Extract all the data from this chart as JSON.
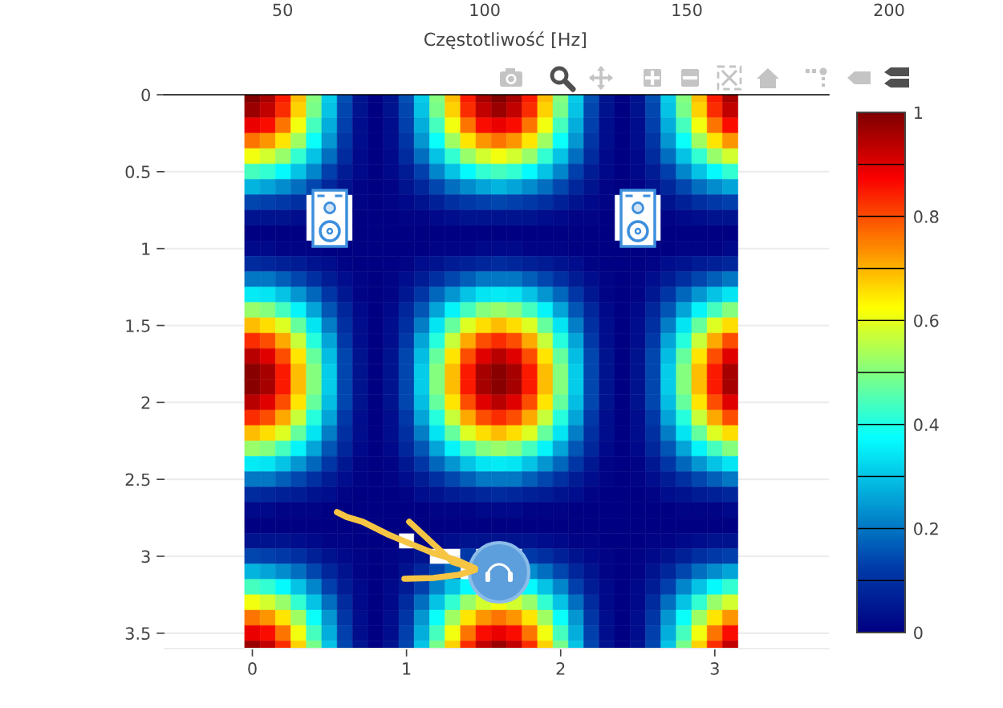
{
  "chart_data": {
    "type": "heatmap",
    "x": [
      0,
      0.1,
      0.2,
      0.3,
      0.4,
      0.5,
      0.6,
      0.7,
      0.8,
      0.9,
      1,
      1.1,
      1.2,
      1.3,
      1.4,
      1.5,
      1.6,
      1.7,
      1.8,
      1.9,
      2,
      2.1,
      2.2,
      2.3,
      2.4,
      2.5,
      2.6,
      2.7,
      2.8,
      2.9,
      3,
      3.1
    ],
    "y": [
      0,
      0.1,
      0.2,
      0.3,
      0.4,
      0.5,
      0.6,
      0.7,
      0.8,
      0.9,
      1,
      1.1,
      1.2,
      1.3,
      1.4,
      1.5,
      1.6,
      1.7,
      1.8,
      1.9,
      2,
      2.1,
      2.2,
      2.3,
      2.4,
      2.5,
      2.6,
      2.7,
      2.8,
      2.9,
      3,
      3.1,
      3.2,
      3.3,
      3.4,
      3.5,
      3.6
    ],
    "cells": [
      [
        1,
        0.96,
        0.85,
        0.69,
        0.5,
        0.31,
        0.15,
        0.04,
        0,
        0.04,
        0.15,
        0.31,
        0.5,
        0.69,
        0.85,
        0.96,
        1,
        0.96,
        0.85,
        0.69,
        0.5,
        0.31,
        0.15,
        0.04,
        0,
        0.04,
        0.15,
        0.31,
        0.5,
        0.69,
        0.85,
        0.96
      ],
      [
        0.97,
        0.93,
        0.83,
        0.67,
        0.49,
        0.3,
        0.14,
        0.04,
        0,
        0.04,
        0.14,
        0.3,
        0.49,
        0.67,
        0.83,
        0.93,
        0.97,
        0.93,
        0.83,
        0.67,
        0.49,
        0.3,
        0.14,
        0.04,
        0,
        0.04,
        0.14,
        0.3,
        0.49,
        0.67,
        0.83,
        0.93
      ],
      [
        0.89,
        0.86,
        0.76,
        0.61,
        0.44,
        0.27,
        0.13,
        0.03,
        0,
        0.03,
        0.13,
        0.27,
        0.44,
        0.61,
        0.76,
        0.86,
        0.89,
        0.86,
        0.76,
        0.61,
        0.44,
        0.27,
        0.13,
        0.03,
        0,
        0.03,
        0.13,
        0.27,
        0.44,
        0.61,
        0.76,
        0.86
      ],
      [
        0.76,
        0.73,
        0.65,
        0.53,
        0.38,
        0.24,
        0.11,
        0.03,
        0,
        0.03,
        0.11,
        0.24,
        0.38,
        0.53,
        0.65,
        0.73,
        0.76,
        0.73,
        0.65,
        0.53,
        0.38,
        0.24,
        0.11,
        0.03,
        0,
        0.03,
        0.11,
        0.24,
        0.38,
        0.53,
        0.65,
        0.73
      ],
      [
        0.61,
        0.58,
        0.52,
        0.42,
        0.3,
        0.19,
        0.09,
        0.02,
        0,
        0.02,
        0.09,
        0.19,
        0.3,
        0.42,
        0.52,
        0.58,
        0.61,
        0.58,
        0.52,
        0.42,
        0.3,
        0.19,
        0.09,
        0.02,
        0,
        0.02,
        0.09,
        0.19,
        0.3,
        0.42,
        0.52,
        0.58
      ],
      [
        0.44,
        0.42,
        0.37,
        0.3,
        0.22,
        0.13,
        0.06,
        0.02,
        0,
        0.02,
        0.06,
        0.13,
        0.22,
        0.3,
        0.37,
        0.42,
        0.44,
        0.42,
        0.37,
        0.3,
        0.22,
        0.13,
        0.06,
        0.02,
        0,
        0.02,
        0.06,
        0.13,
        0.22,
        0.3,
        0.37,
        0.42
      ],
      [
        0.28,
        0.26,
        0.23,
        0.19,
        0.14,
        0.08,
        0.04,
        0.01,
        0,
        0.01,
        0.04,
        0.08,
        0.14,
        0.19,
        0.23,
        0.26,
        0.28,
        0.26,
        0.23,
        0.19,
        0.14,
        0.08,
        0.04,
        0.01,
        0,
        0.01,
        0.04,
        0.08,
        0.14,
        0.19,
        0.23,
        0.26
      ],
      [
        0.14,
        0.13,
        0.12,
        0.1,
        null,
        null,
        null,
        0.01,
        0,
        0.01,
        0.02,
        0.04,
        0.07,
        0.1,
        0.12,
        0.13,
        0.14,
        0.13,
        0.12,
        0.1,
        0.07,
        0.04,
        0.02,
        0.01,
        null,
        null,
        null,
        0.04,
        0.07,
        0.1,
        0.12,
        0.13
      ],
      [
        0.04,
        0.04,
        0.04,
        0.03,
        null,
        null,
        null,
        0,
        0,
        0,
        0.01,
        0.01,
        0.02,
        0.03,
        0.04,
        0.04,
        0.04,
        0.04,
        0.04,
        0.03,
        0.02,
        0.01,
        0.01,
        0,
        null,
        null,
        null,
        0.01,
        0.02,
        0.03,
        0.04,
        0.04
      ],
      [
        0,
        0,
        0,
        0,
        null,
        null,
        null,
        0,
        0,
        0,
        0,
        0,
        0,
        0,
        0,
        0,
        0,
        0,
        0,
        0,
        0,
        0,
        0,
        0,
        null,
        null,
        null,
        0,
        0,
        0,
        0,
        0
      ],
      [
        0.02,
        0.02,
        0.01,
        0.01,
        0.01,
        0,
        0,
        0,
        0,
        0,
        0,
        0,
        0.01,
        0.01,
        0.01,
        0.02,
        0.02,
        0.02,
        0.01,
        0.01,
        0.01,
        0,
        0,
        0,
        0,
        0,
        0,
        0,
        0.01,
        0.01,
        0.01,
        0.02
      ],
      [
        0.09,
        0.08,
        0.07,
        0.06,
        0.04,
        0.03,
        0.01,
        0,
        0,
        0,
        0.01,
        0.03,
        0.04,
        0.06,
        0.07,
        0.08,
        0.09,
        0.08,
        0.07,
        0.06,
        0.04,
        0.03,
        0.01,
        0,
        0,
        0,
        0.01,
        0.03,
        0.04,
        0.06,
        0.07,
        0.08
      ],
      [
        0.2,
        0.2,
        0.17,
        0.14,
        0.1,
        0.06,
        0.03,
        0.01,
        0,
        0.01,
        0.03,
        0.06,
        0.1,
        0.14,
        0.17,
        0.2,
        0.2,
        0.2,
        0.17,
        0.14,
        0.1,
        0.06,
        0.03,
        0.01,
        0,
        0.01,
        0.03,
        0.06,
        0.1,
        0.14,
        0.17,
        0.2
      ],
      [
        0.35,
        0.34,
        0.3,
        0.24,
        0.18,
        0.11,
        0.05,
        0.01,
        0,
        0.01,
        0.05,
        0.11,
        0.18,
        0.24,
        0.3,
        0.34,
        0.35,
        0.34,
        0.3,
        0.24,
        0.18,
        0.11,
        0.05,
        0.01,
        0,
        0.01,
        0.05,
        0.11,
        0.18,
        0.24,
        0.3,
        0.34
      ],
      [
        0.52,
        0.5,
        0.44,
        0.36,
        0.26,
        0.16,
        0.08,
        0.02,
        0,
        0.02,
        0.08,
        0.16,
        0.26,
        0.36,
        0.44,
        0.5,
        0.52,
        0.5,
        0.44,
        0.36,
        0.26,
        0.16,
        0.08,
        0.02,
        0,
        0.02,
        0.08,
        0.16,
        0.26,
        0.36,
        0.44,
        0.5
      ],
      [
        0.69,
        0.66,
        0.59,
        0.47,
        0.34,
        0.21,
        0.1,
        0.03,
        0,
        0.03,
        0.1,
        0.21,
        0.34,
        0.47,
        0.59,
        0.66,
        0.69,
        0.66,
        0.59,
        0.47,
        0.34,
        0.21,
        0.1,
        0.03,
        0,
        0.03,
        0.1,
        0.21,
        0.34,
        0.47,
        0.59,
        0.66
      ],
      [
        0.83,
        0.8,
        0.71,
        0.57,
        0.41,
        0.26,
        0.12,
        0.03,
        0,
        0.03,
        0.12,
        0.26,
        0.41,
        0.57,
        0.71,
        0.8,
        0.83,
        0.8,
        0.71,
        0.57,
        0.41,
        0.26,
        0.12,
        0.03,
        0,
        0.03,
        0.12,
        0.26,
        0.41,
        0.57,
        0.71,
        0.8
      ],
      [
        0.94,
        0.9,
        0.8,
        0.65,
        0.47,
        0.29,
        0.14,
        0.04,
        0,
        0.04,
        0.14,
        0.29,
        0.47,
        0.65,
        0.8,
        0.9,
        0.94,
        0.9,
        0.8,
        0.65,
        0.47,
        0.29,
        0.14,
        0.04,
        0,
        0.04,
        0.14,
        0.29,
        0.47,
        0.65,
        0.8,
        0.9
      ],
      [
        0.99,
        0.96,
        0.85,
        0.69,
        0.5,
        0.31,
        0.14,
        0.04,
        0,
        0.04,
        0.14,
        0.31,
        0.5,
        0.69,
        0.85,
        0.96,
        0.99,
        0.96,
        0.85,
        0.69,
        0.5,
        0.31,
        0.14,
        0.04,
        0,
        0.04,
        0.14,
        0.31,
        0.5,
        0.69,
        0.85,
        0.96
      ],
      [
        0.99,
        0.96,
        0.85,
        0.69,
        0.5,
        0.31,
        0.14,
        0.04,
        0,
        0.04,
        0.14,
        0.31,
        0.5,
        0.69,
        0.85,
        0.96,
        0.99,
        0.96,
        0.85,
        0.69,
        0.5,
        0.31,
        0.14,
        0.04,
        0,
        0.04,
        0.14,
        0.31,
        0.5,
        0.69,
        0.85,
        0.96
      ],
      [
        0.94,
        0.9,
        0.8,
        0.65,
        0.47,
        0.29,
        0.14,
        0.04,
        0,
        0.04,
        0.14,
        0.29,
        0.47,
        0.65,
        0.8,
        0.9,
        0.94,
        0.9,
        0.8,
        0.65,
        0.47,
        0.29,
        0.14,
        0.04,
        0,
        0.04,
        0.14,
        0.29,
        0.47,
        0.65,
        0.8,
        0.9
      ],
      [
        0.83,
        0.8,
        0.71,
        0.57,
        0.41,
        0.26,
        0.12,
        0.03,
        0,
        0.03,
        0.12,
        0.26,
        0.41,
        0.57,
        0.71,
        0.8,
        0.83,
        0.8,
        0.71,
        0.57,
        0.41,
        0.26,
        0.12,
        0.03,
        0,
        0.03,
        0.12,
        0.26,
        0.41,
        0.57,
        0.71,
        0.8
      ],
      [
        0.69,
        0.66,
        0.59,
        0.47,
        0.34,
        0.21,
        0.1,
        0.03,
        0,
        0.03,
        0.1,
        0.21,
        0.34,
        0.47,
        0.59,
        0.66,
        0.69,
        0.66,
        0.59,
        0.47,
        0.34,
        0.21,
        0.1,
        0.03,
        0,
        0.03,
        0.1,
        0.21,
        0.34,
        0.47,
        0.59,
        0.66
      ],
      [
        0.52,
        0.5,
        0.44,
        0.36,
        0.26,
        0.16,
        0.08,
        0.02,
        0,
        0.02,
        0.08,
        0.16,
        0.26,
        0.36,
        0.44,
        0.5,
        0.52,
        0.5,
        0.44,
        0.36,
        0.26,
        0.16,
        0.08,
        0.02,
        0,
        0.02,
        0.08,
        0.16,
        0.26,
        0.36,
        0.44,
        0.5
      ],
      [
        0.35,
        0.34,
        0.3,
        0.24,
        0.18,
        0.11,
        0.05,
        0.01,
        0,
        0.01,
        0.05,
        0.11,
        0.18,
        0.24,
        0.3,
        0.34,
        0.35,
        0.34,
        0.3,
        0.24,
        0.18,
        0.11,
        0.05,
        0.01,
        0,
        0.01,
        0.05,
        0.11,
        0.18,
        0.24,
        0.3,
        0.34
      ],
      [
        0.2,
        0.2,
        0.17,
        0.14,
        0.1,
        0.06,
        0.03,
        0.01,
        0,
        0.01,
        0.03,
        0.06,
        0.1,
        0.14,
        0.17,
        0.2,
        0.2,
        0.2,
        0.17,
        0.14,
        0.1,
        0.06,
        0.03,
        0.01,
        0,
        0.01,
        0.03,
        0.06,
        0.1,
        0.14,
        0.17,
        0.2
      ],
      [
        0.09,
        0.08,
        0.07,
        0.06,
        0.04,
        0.03,
        0.01,
        0,
        0,
        0,
        0.01,
        0.03,
        0.04,
        0.06,
        0.07,
        0.08,
        0.09,
        0.08,
        0.07,
        0.06,
        0.04,
        0.03,
        0.01,
        0,
        0,
        0,
        0.01,
        0.03,
        0.04,
        0.06,
        0.07,
        0.08
      ],
      [
        0.02,
        0.02,
        0.01,
        0.01,
        0.01,
        0,
        0,
        0,
        0,
        0,
        0,
        0,
        0.01,
        0.01,
        0.01,
        0.02,
        0.02,
        0.02,
        0.01,
        0.01,
        0.01,
        0,
        0,
        0,
        0,
        0,
        0,
        0,
        0.01,
        0.01,
        0.01,
        0.02
      ],
      [
        0,
        0,
        0,
        0,
        0,
        0,
        0,
        0,
        0,
        0,
        0,
        0,
        0,
        0,
        0,
        0,
        0,
        0,
        0,
        0,
        0,
        0,
        0,
        0,
        0,
        0,
        0,
        0,
        0,
        0,
        0,
        0
      ],
      [
        0.04,
        0.04,
        0.04,
        0.03,
        0.02,
        0.01,
        0.01,
        0,
        0,
        0,
        null,
        0.01,
        0.02,
        0.03,
        0.04,
        0.04,
        0.04,
        0.04,
        0.04,
        0.03,
        0.02,
        0.01,
        0.01,
        0,
        0,
        0,
        0.01,
        0.01,
        0.02,
        0.03,
        0.04,
        0.04
      ],
      [
        0.14,
        0.13,
        0.12,
        0.1,
        0.07,
        0.04,
        0.02,
        0.01,
        0,
        0.01,
        0.02,
        0.04,
        null,
        null,
        0.12,
        null,
        null,
        null,
        0.12,
        0.1,
        0.07,
        0.04,
        0.02,
        0.01,
        0,
        0.01,
        0.02,
        0.04,
        0.07,
        0.1,
        0.12,
        0.13
      ],
      [
        0.28,
        0.26,
        0.23,
        0.19,
        0.14,
        0.08,
        0.04,
        0.01,
        0,
        0.01,
        0.04,
        0.08,
        0.14,
        0.19,
        null,
        null,
        null,
        null,
        0.23,
        0.19,
        0.14,
        0.08,
        0.04,
        0.01,
        0,
        0.01,
        0.04,
        0.08,
        0.14,
        0.19,
        0.23,
        0.26
      ],
      [
        0.44,
        0.42,
        0.37,
        0.3,
        0.22,
        0.13,
        0.06,
        0.02,
        0,
        0.02,
        0.06,
        0.13,
        0.22,
        0.3,
        0.37,
        null,
        null,
        null,
        0.37,
        0.3,
        0.22,
        0.13,
        0.06,
        0.02,
        0,
        0.02,
        0.06,
        0.13,
        0.22,
        0.3,
        0.37,
        0.42
      ],
      [
        0.61,
        0.58,
        0.52,
        0.42,
        0.3,
        0.19,
        0.09,
        0.02,
        0,
        0.02,
        0.09,
        0.19,
        0.3,
        0.42,
        0.52,
        0.58,
        0.61,
        0.58,
        0.52,
        0.42,
        0.3,
        0.19,
        0.09,
        0.02,
        0,
        0.02,
        0.09,
        0.19,
        0.3,
        0.42,
        0.52,
        0.58
      ],
      [
        0.76,
        0.73,
        0.65,
        0.53,
        0.38,
        0.24,
        0.11,
        0.03,
        0,
        0.03,
        0.11,
        0.24,
        0.38,
        0.53,
        0.65,
        0.73,
        0.76,
        0.73,
        0.65,
        0.53,
        0.38,
        0.24,
        0.11,
        0.03,
        0,
        0.03,
        0.11,
        0.24,
        0.38,
        0.53,
        0.65,
        0.73
      ],
      [
        0.89,
        0.86,
        0.76,
        0.61,
        0.44,
        0.27,
        0.13,
        0.03,
        0,
        0.03,
        0.13,
        0.27,
        0.44,
        0.61,
        0.76,
        0.86,
        0.89,
        0.86,
        0.76,
        0.61,
        0.44,
        0.27,
        0.13,
        0.03,
        0,
        0.03,
        0.13,
        0.27,
        0.44,
        0.61,
        0.76,
        0.86
      ],
      [
        0.97,
        0.93,
        0.83,
        0.67,
        0.49,
        0.3,
        0.14,
        0.04,
        0,
        0.04,
        0.14,
        0.3,
        0.49,
        0.67,
        0.83,
        0.93,
        0.97,
        0.93,
        0.83,
        0.67,
        0.49,
        0.3,
        0.14,
        0.04,
        0,
        0.04,
        0.14,
        0.3,
        0.49,
        0.67,
        0.83,
        0.93
      ]
    ],
    "colors": [
      "#000083",
      "#003caa",
      "#039ed5",
      "#05ffff",
      "#82ff80",
      "#ffff00",
      "#fd8000",
      "#fa0000",
      "#800000"
    ],
    "clim": [
      0,
      1
    ],
    "cticks": [
      0,
      0.2,
      0.4,
      0.6,
      0.8,
      1
    ],
    "xlim": [
      -0.57,
      3.74
    ],
    "xticks": [
      0,
      1,
      2,
      3
    ],
    "ylim": [
      3.6,
      0
    ],
    "yticks": [
      0,
      0.5,
      1,
      1.5,
      2,
      2.5,
      3,
      3.5
    ],
    "x2lim": [
      20.8,
      200
    ],
    "x2ticks": [
      50,
      100,
      150,
      200
    ],
    "x2label": "Częstotliwość [Hz]",
    "grid": "y"
  }
}
